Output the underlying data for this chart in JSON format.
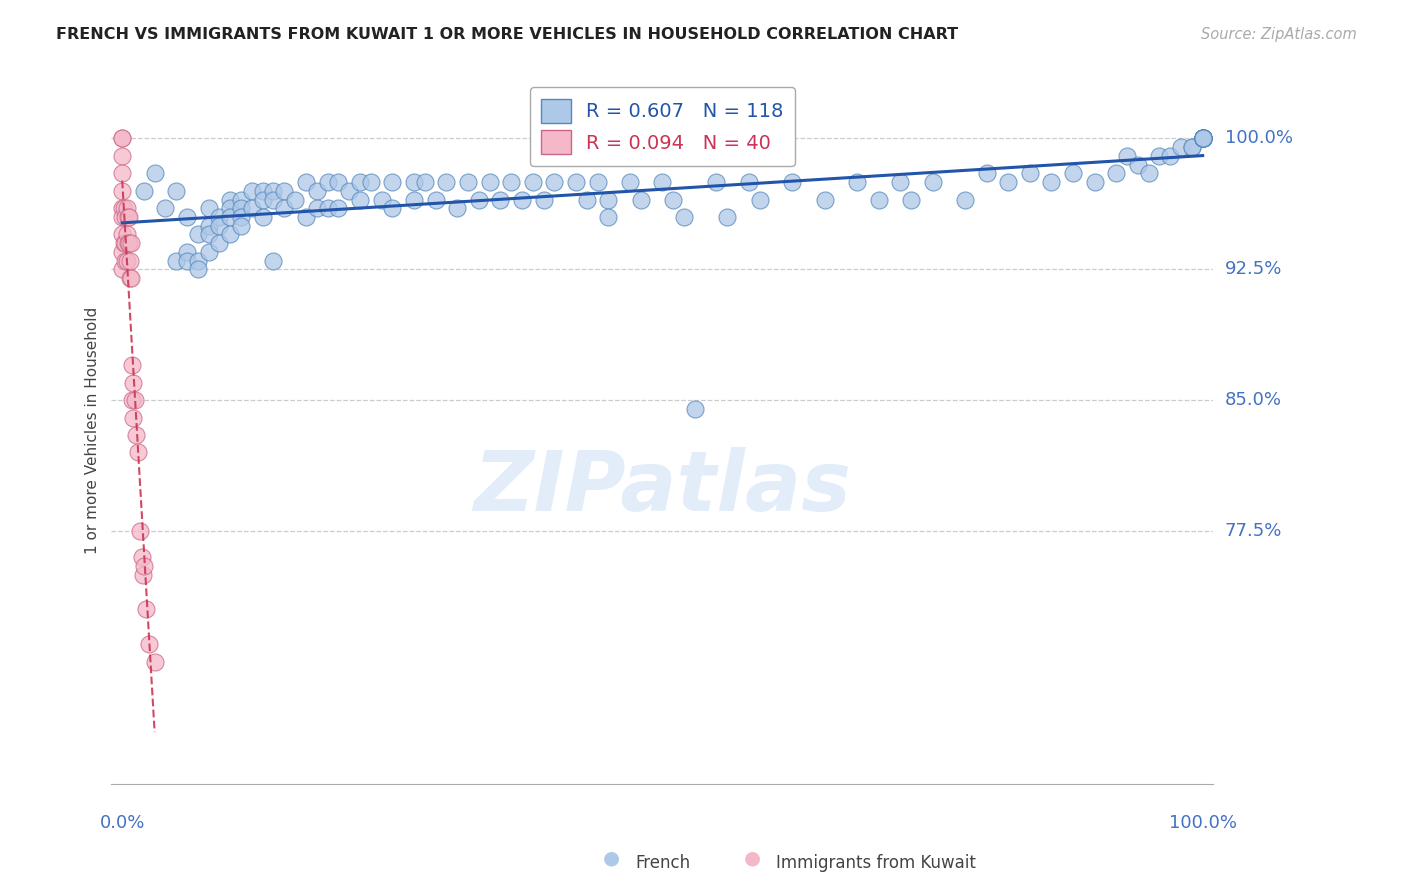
{
  "title": "FRENCH VS IMMIGRANTS FROM KUWAIT 1 OR MORE VEHICLES IN HOUSEHOLD CORRELATION CHART",
  "source": "Source: ZipAtlas.com",
  "ylabel": "1 or more Vehicles in Household",
  "blue_R": 0.607,
  "blue_N": 118,
  "pink_R": 0.094,
  "pink_N": 40,
  "blue_color": "#aec8e8",
  "pink_color": "#f4b8c8",
  "blue_edge_color": "#5588bb",
  "pink_edge_color": "#cc6688",
  "blue_line_color": "#2255aa",
  "pink_line_color": "#cc3355",
  "legend_blue_label": "French",
  "legend_pink_label": "Immigrants from Kuwait",
  "watermark": "ZIPatlas",
  "ylim": [
    0.63,
    1.035
  ],
  "xlim": [
    -0.01,
    1.01
  ],
  "ytick_vals": [
    0.775,
    0.85,
    0.925,
    1.0
  ],
  "ytick_labels": [
    "77.5%",
    "85.0%",
    "92.5%",
    "100.0%"
  ],
  "blue_x": [
    0.02,
    0.03,
    0.04,
    0.05,
    0.05,
    0.06,
    0.06,
    0.06,
    0.07,
    0.07,
    0.07,
    0.08,
    0.08,
    0.08,
    0.08,
    0.09,
    0.09,
    0.09,
    0.1,
    0.1,
    0.1,
    0.1,
    0.11,
    0.11,
    0.11,
    0.11,
    0.12,
    0.12,
    0.13,
    0.13,
    0.13,
    0.14,
    0.14,
    0.14,
    0.15,
    0.15,
    0.16,
    0.17,
    0.17,
    0.18,
    0.18,
    0.19,
    0.19,
    0.2,
    0.2,
    0.21,
    0.22,
    0.22,
    0.23,
    0.24,
    0.25,
    0.25,
    0.27,
    0.27,
    0.28,
    0.29,
    0.3,
    0.31,
    0.32,
    0.33,
    0.34,
    0.35,
    0.36,
    0.37,
    0.38,
    0.39,
    0.4,
    0.42,
    0.43,
    0.44,
    0.45,
    0.45,
    0.47,
    0.48,
    0.5,
    0.51,
    0.52,
    0.53,
    0.55,
    0.56,
    0.58,
    0.59,
    0.62,
    0.65,
    0.68,
    0.7,
    0.72,
    0.73,
    0.75,
    0.78,
    0.8,
    0.82,
    0.84,
    0.86,
    0.88,
    0.9,
    0.92,
    0.93,
    0.94,
    0.95,
    0.96,
    0.97,
    0.98,
    0.99,
    0.99,
    1.0,
    1.0,
    1.0,
    1.0,
    1.0,
    1.0,
    1.0,
    1.0,
    1.0,
    1.0,
    1.0,
    1.0,
    1.0
  ],
  "blue_y": [
    0.97,
    0.98,
    0.96,
    0.97,
    0.93,
    0.955,
    0.935,
    0.93,
    0.945,
    0.93,
    0.925,
    0.96,
    0.95,
    0.945,
    0.935,
    0.955,
    0.95,
    0.94,
    0.965,
    0.96,
    0.955,
    0.945,
    0.965,
    0.96,
    0.955,
    0.95,
    0.97,
    0.96,
    0.97,
    0.965,
    0.955,
    0.97,
    0.965,
    0.93,
    0.97,
    0.96,
    0.965,
    0.975,
    0.955,
    0.97,
    0.96,
    0.975,
    0.96,
    0.975,
    0.96,
    0.97,
    0.975,
    0.965,
    0.975,
    0.965,
    0.975,
    0.96,
    0.975,
    0.965,
    0.975,
    0.965,
    0.975,
    0.96,
    0.975,
    0.965,
    0.975,
    0.965,
    0.975,
    0.965,
    0.975,
    0.965,
    0.975,
    0.975,
    0.965,
    0.975,
    0.965,
    0.955,
    0.975,
    0.965,
    0.975,
    0.965,
    0.955,
    0.845,
    0.975,
    0.955,
    0.975,
    0.965,
    0.975,
    0.965,
    0.975,
    0.965,
    0.975,
    0.965,
    0.975,
    0.965,
    0.98,
    0.975,
    0.98,
    0.975,
    0.98,
    0.975,
    0.98,
    0.99,
    0.985,
    0.98,
    0.99,
    0.99,
    0.995,
    0.995,
    0.995,
    1.0,
    1.0,
    1.0,
    1.0,
    1.0,
    1.0,
    1.0,
    1.0,
    1.0,
    1.0,
    1.0,
    1.0,
    1.0
  ],
  "pink_x": [
    0.0,
    0.0,
    0.0,
    0.0,
    0.0,
    0.0,
    0.0,
    0.0,
    0.0,
    0.0,
    0.002,
    0.002,
    0.003,
    0.003,
    0.003,
    0.004,
    0.004,
    0.004,
    0.005,
    0.005,
    0.006,
    0.006,
    0.007,
    0.007,
    0.008,
    0.008,
    0.009,
    0.009,
    0.01,
    0.01,
    0.012,
    0.013,
    0.015,
    0.016,
    0.018,
    0.019,
    0.02,
    0.022,
    0.025,
    0.03
  ],
  "pink_y": [
    1.0,
    1.0,
    0.99,
    0.98,
    0.97,
    0.96,
    0.955,
    0.945,
    0.935,
    0.925,
    0.96,
    0.94,
    0.955,
    0.94,
    0.93,
    0.96,
    0.945,
    0.93,
    0.955,
    0.94,
    0.955,
    0.94,
    0.93,
    0.92,
    0.94,
    0.92,
    0.87,
    0.85,
    0.86,
    0.84,
    0.85,
    0.83,
    0.82,
    0.775,
    0.76,
    0.75,
    0.755,
    0.73,
    0.71,
    0.7
  ]
}
